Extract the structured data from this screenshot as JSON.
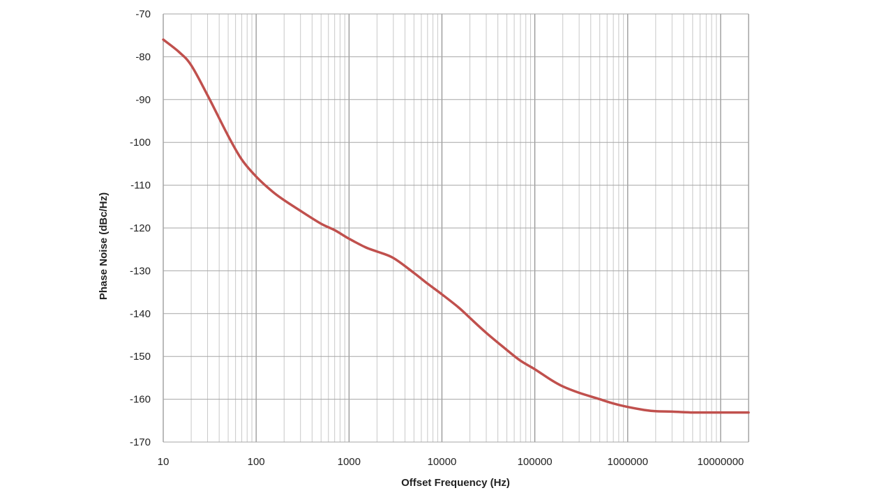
{
  "chart_data": {
    "type": "line",
    "title": "",
    "xlabel": "Offset Frequency (Hz)",
    "ylabel": "Phase Noise (dBc/Hz)",
    "x_scale": "log",
    "xlim": [
      10,
      20000000
    ],
    "ylim": [
      -170,
      -70
    ],
    "grid": true,
    "legend": "none",
    "x_ticks": [
      {
        "value": 10,
        "label": "10"
      },
      {
        "value": 100,
        "label": "100"
      },
      {
        "value": 1000,
        "label": "1000"
      },
      {
        "value": 10000,
        "label": "10000"
      },
      {
        "value": 100000,
        "label": "100000"
      },
      {
        "value": 1000000,
        "label": "1000000"
      },
      {
        "value": 10000000,
        "label": "10000000"
      }
    ],
    "y_ticks": [
      {
        "value": -70,
        "label": "-70"
      },
      {
        "value": -80,
        "label": "-80"
      },
      {
        "value": -90,
        "label": "-90"
      },
      {
        "value": -100,
        "label": "-100"
      },
      {
        "value": -110,
        "label": "-110"
      },
      {
        "value": -120,
        "label": "-120"
      },
      {
        "value": -130,
        "label": "-130"
      },
      {
        "value": -140,
        "label": "-140"
      },
      {
        "value": -150,
        "label": "-150"
      },
      {
        "value": -160,
        "label": "-160"
      },
      {
        "value": -170,
        "label": "-170"
      }
    ],
    "series": [
      {
        "color": "#c0504d",
        "x": [
          10,
          15,
          20,
          30,
          50,
          70,
          100,
          150,
          200,
          300,
          500,
          700,
          1000,
          1500,
          2000,
          3000,
          5000,
          7000,
          10000,
          15000,
          20000,
          30000,
          50000,
          70000,
          100000,
          150000,
          200000,
          300000,
          500000,
          700000,
          1000000,
          1500000,
          2000000,
          3000000,
          5000000,
          7000000,
          10000000,
          20000000
        ],
        "y": [
          -76,
          -79,
          -82,
          -89,
          -98.5,
          -104,
          -108,
          -111.5,
          -113.5,
          -116,
          -119,
          -120.5,
          -122.5,
          -124.5,
          -125.5,
          -127,
          -130.5,
          -133,
          -135.5,
          -138.5,
          -141,
          -144.5,
          -148.5,
          -151,
          -153,
          -155.5,
          -157,
          -158.5,
          -160,
          -161,
          -161.8,
          -162.5,
          -162.8,
          -162.9,
          -163.1,
          -163.1,
          -163.1,
          -163.1
        ]
      }
    ]
  }
}
